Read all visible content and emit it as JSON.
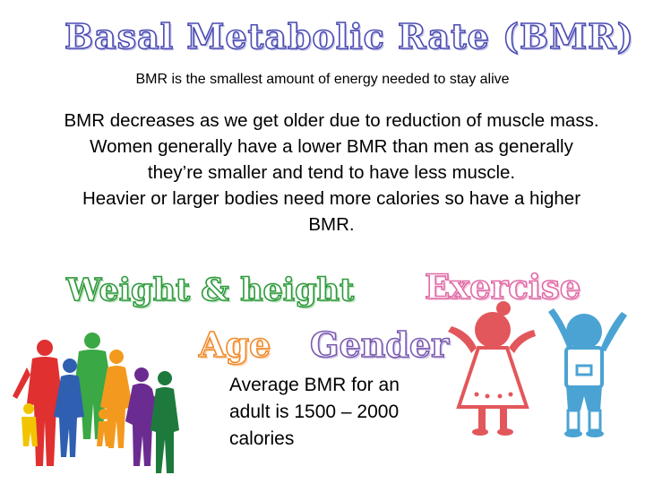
{
  "slide": {
    "title": "Basal Metabolic Rate (BMR)",
    "subtitle": "BMR is the smallest amount of energy needed to stay alive",
    "paragraphs": [
      "BMR decreases as we get older due to reduction of muscle mass.",
      "Women generally have a lower BMR than men as generally they’re smaller and tend to have less muscle.",
      "Heavier or larger bodies need more calories so have a higher BMR."
    ],
    "keywords": {
      "weight_height": "Weight & height",
      "exercise": "Exercise",
      "age": "Age",
      "gender": "Gender"
    },
    "average_note": "Average BMR for an adult is 1500 – 2000 calories"
  },
  "colors": {
    "title_outline": "#4b4bb4",
    "weight_height": "#2f9a3c",
    "exercise": "#e06aa6",
    "age": "#f08a2a",
    "gender": "#7a5bb0",
    "girl_figure": "#e2575b",
    "boy_figure": "#4aa3d3"
  }
}
